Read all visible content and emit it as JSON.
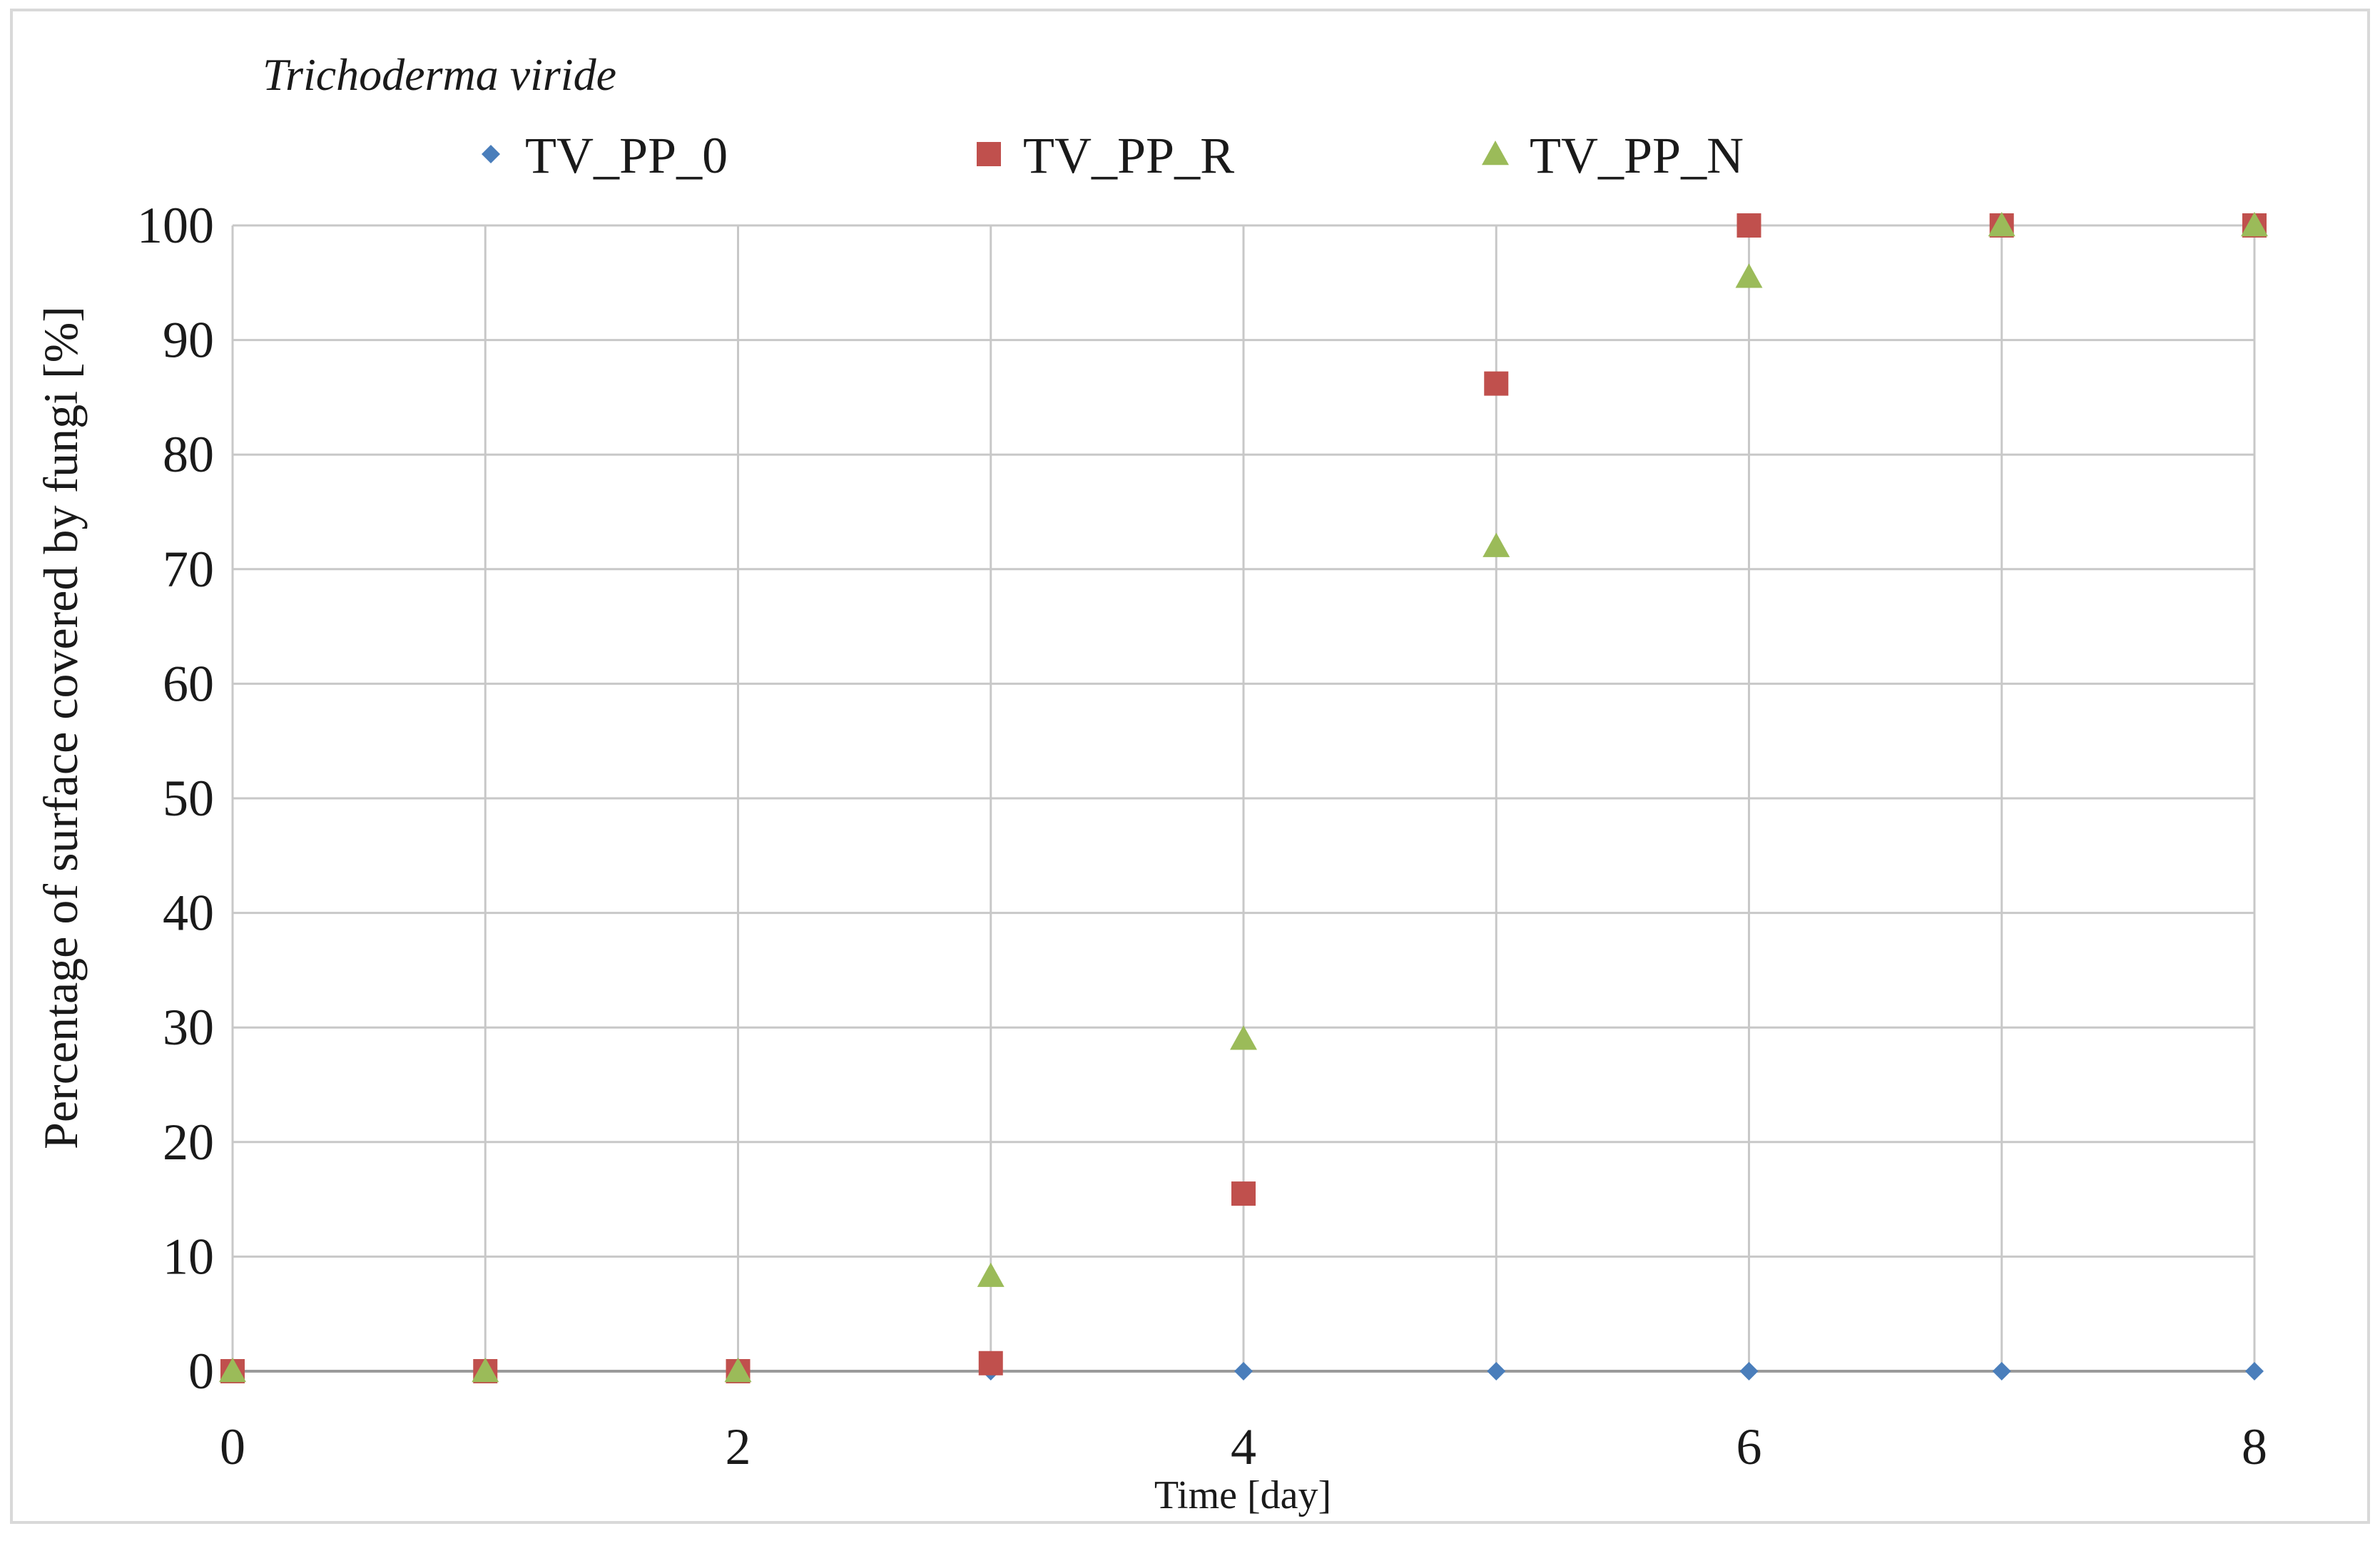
{
  "chart_data": {
    "type": "scatter",
    "title": "Trichoderma viride",
    "xlabel": "Time [day]",
    "ylabel": "Percentage of surface covered by fungi [%]",
    "xlim": [
      0,
      8
    ],
    "ylim": [
      0,
      100
    ],
    "x_ticks": [
      0,
      2,
      4,
      6,
      8
    ],
    "y_ticks": [
      0,
      10,
      20,
      30,
      40,
      50,
      60,
      70,
      80,
      90,
      100
    ],
    "x_grid_step": 1,
    "grid": true,
    "legend_position": "top-center",
    "series": [
      {
        "name": "TV_PP_0",
        "marker": "diamond",
        "color": "#4a7ebb",
        "x": [
          0,
          1,
          2,
          3,
          4,
          5,
          6,
          7,
          8
        ],
        "y": [
          0,
          0,
          0,
          0,
          0,
          0,
          0,
          0,
          0
        ]
      },
      {
        "name": "TV_PP_R",
        "marker": "square",
        "color": "#c0504d",
        "x": [
          0,
          1,
          2,
          3,
          4,
          5,
          6,
          7,
          8
        ],
        "y": [
          0,
          0,
          0,
          0.7,
          15.5,
          86.2,
          100,
          100,
          100
        ]
      },
      {
        "name": "TV_PP_N",
        "marker": "triangle",
        "color": "#9bbb59",
        "x": [
          0,
          1,
          2,
          3,
          4,
          5,
          6,
          7,
          8
        ],
        "y": [
          0,
          0,
          0,
          8.3,
          29,
          72,
          95.5,
          100,
          100
        ]
      }
    ]
  }
}
